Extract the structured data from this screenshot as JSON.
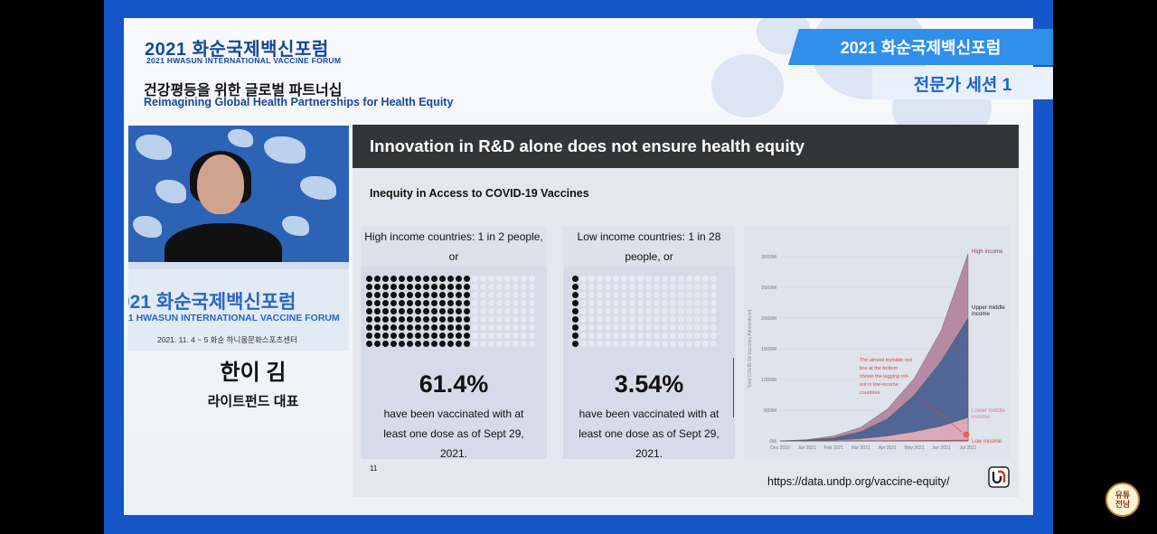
{
  "forum": {
    "title_ko": "2021 화순국제백신포럼",
    "title_en": "2021 HWASUN INTERNATIONAL VACCINE FORUM",
    "theme_ko": "건강평등을 위한 글로벌 파트너십",
    "theme_en": "Reimagining Global Health Partnerships for Health Equity"
  },
  "banner": {
    "top": "2021 화순국제백신포럼",
    "bottom": "전문가 세션 1"
  },
  "event_board": {
    "title": "021 화순국제백신포럼",
    "subtitle": "21 HWASUN INTERNATIONAL VACCINE FORUM",
    "date": "2021. 11. 4 ~ 5   화순 하니움문화스포츠센터"
  },
  "speaker": {
    "name": "한이 김",
    "role": "라이트펀드 대표"
  },
  "slide": {
    "title": "Innovation in R&D alone does not ensure health equity",
    "subtitle": "Inequity in Access to  COVID-19 Vaccines",
    "page_number": "11",
    "source": "https://data.undp.org/vaccine-equity/",
    "high": {
      "heading": "High income countries: 1 in 2 people, or",
      "percent": "61.4%",
      "note": "have been vaccinated with at least one dose as of Sept 29, 2021."
    },
    "low": {
      "heading": "Low income countries: 1 in 28 people, or",
      "percent": "3.54%",
      "note": "have been vaccinated with at least one dose as of Sept 29, 2021."
    }
  },
  "chart_data": {
    "type": "area",
    "title": "",
    "ylabel": "Total COVID-19 Vaccines Administered",
    "xlabel": "",
    "ylim": [
      0,
      3000
    ],
    "yticks": [
      "0M",
      "500M",
      "1000M",
      "1500M",
      "2000M",
      "2500M",
      "3000M"
    ],
    "x": [
      "Dec 2020",
      "Jan 2021",
      "Feb 2021",
      "Mar 2021",
      "Apr 2021",
      "May 2021",
      "Jun 2021",
      "Jul 2021"
    ],
    "series": [
      {
        "name": "High income",
        "color": "#b07a96",
        "values": [
          0,
          20,
          80,
          220,
          520,
          1020,
          1800,
          3050
        ]
      },
      {
        "name": "Upper middle income",
        "color": "#3f5e94",
        "values": [
          0,
          12,
          50,
          150,
          360,
          750,
          1300,
          2000
        ]
      },
      {
        "name": "Lower middle income",
        "color": "#f2b5c2",
        "values": [
          0,
          3,
          12,
          35,
          80,
          150,
          240,
          380
        ]
      },
      {
        "name": "Low income",
        "color": "#f05a4a",
        "values": [
          0,
          0,
          1,
          2,
          4,
          7,
          10,
          15
        ]
      }
    ],
    "annotation": "The almost invisible red line at the bottom shows the lagging roll-out in low-income countries"
  }
}
